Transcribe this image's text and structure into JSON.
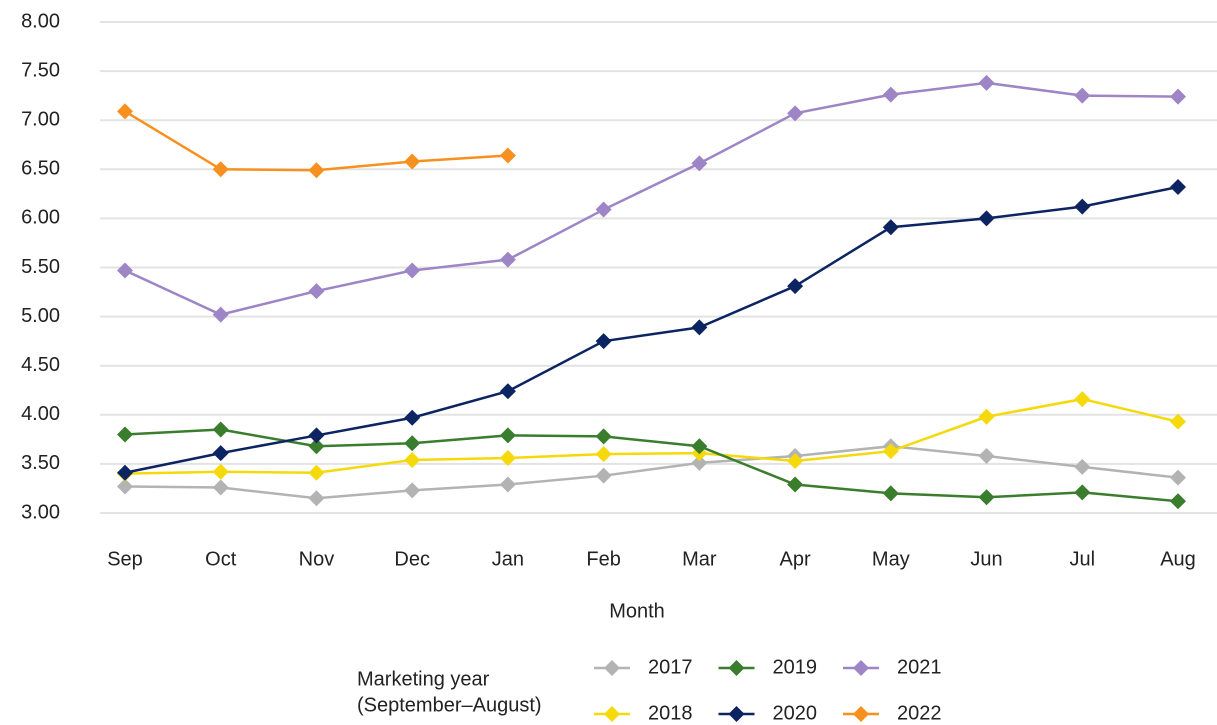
{
  "chart_data": {
    "type": "line",
    "x_label": "Month",
    "legend_title": [
      "Marketing year",
      "(September–August)"
    ],
    "categories": [
      "Sep",
      "Oct",
      "Nov",
      "Dec",
      "Jan",
      "Feb",
      "Mar",
      "Apr",
      "May",
      "Jun",
      "Jul",
      "Aug"
    ],
    "ylim": [
      3,
      8
    ],
    "yticks": [
      {
        "value": 3,
        "label": "3.00"
      },
      {
        "value": 3.5,
        "label": "3.50"
      },
      {
        "value": 4,
        "label": "4.00"
      },
      {
        "value": 4.5,
        "label": "4.50"
      },
      {
        "value": 5,
        "label": "5.00"
      },
      {
        "value": 5.5,
        "label": "5.50"
      },
      {
        "value": 6,
        "label": "6.00"
      },
      {
        "value": 6.5,
        "label": "6.50"
      },
      {
        "value": 7,
        "label": "7.00"
      },
      {
        "value": 7.5,
        "label": "7.50"
      },
      {
        "value": 8,
        "label": "8.00"
      }
    ],
    "grid": true,
    "series": [
      {
        "name": "2017",
        "color": "#b3b3b3",
        "values": [
          3.27,
          3.26,
          3.15,
          3.23,
          3.29,
          3.38,
          3.51,
          3.58,
          3.68,
          3.58,
          3.47,
          3.36
        ]
      },
      {
        "name": "2018",
        "color": "#f5d90a",
        "values": [
          3.4,
          3.42,
          3.41,
          3.54,
          3.56,
          3.6,
          3.61,
          3.53,
          3.63,
          3.98,
          4.16,
          3.93
        ]
      },
      {
        "name": "2019",
        "color": "#3a7d2c",
        "values": [
          3.8,
          3.85,
          3.68,
          3.71,
          3.79,
          3.78,
          3.68,
          3.29,
          3.2,
          3.16,
          3.21,
          3.12
        ]
      },
      {
        "name": "2020",
        "color": "#0c2461",
        "values": [
          3.41,
          3.61,
          3.79,
          3.97,
          4.24,
          4.75,
          4.89,
          5.31,
          5.91,
          6.0,
          6.12,
          6.32
        ]
      },
      {
        "name": "2021",
        "color": "#9d85c6",
        "values": [
          5.47,
          5.02,
          5.26,
          5.47,
          5.58,
          6.09,
          6.56,
          7.07,
          7.26,
          7.38,
          7.25,
          7.24
        ]
      },
      {
        "name": "2022",
        "color": "#f7901e",
        "values": [
          7.09,
          6.5,
          6.49,
          6.58,
          6.64,
          null,
          null,
          null,
          null,
          null,
          null,
          null
        ]
      }
    ]
  }
}
